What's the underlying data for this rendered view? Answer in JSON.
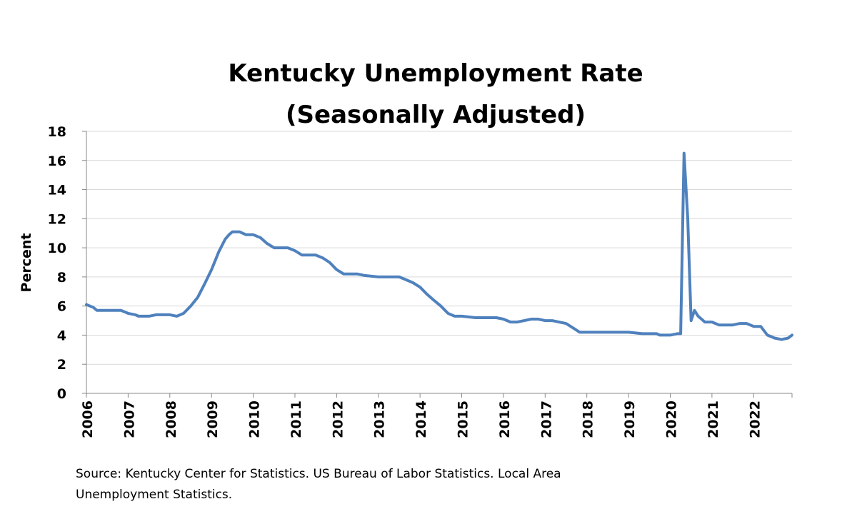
{
  "chart_data": {
    "type": "line",
    "title": "Kentucky Unemployment Rate",
    "subtitle": "(Seasonally Adjusted)",
    "ylabel": "Percent",
    "xlabel": "",
    "ylim": [
      0,
      18
    ],
    "xlim": [
      2006,
      2022.92
    ],
    "y_ticks": [
      0,
      2,
      4,
      6,
      8,
      10,
      12,
      14,
      16,
      18
    ],
    "x_tick_labels": [
      "2006",
      "2007",
      "2008",
      "2009",
      "2010",
      "2011",
      "2012",
      "2013",
      "2014",
      "2015",
      "2016",
      "2017",
      "2018",
      "2019",
      "2020",
      "2021",
      "2022"
    ],
    "grid": true,
    "legend": "none",
    "line_color": "#4f81bd",
    "grid_color": "#d9d9d9",
    "series": [
      {
        "x": [
          2006.0,
          2006.17,
          2006.25,
          2006.5,
          2006.83,
          2007.0,
          2007.17,
          2007.25,
          2007.5,
          2007.67,
          2008.0,
          2008.17,
          2008.33,
          2008.5,
          2008.67,
          2008.83,
          2009.0,
          2009.17,
          2009.33,
          2009.42,
          2009.5,
          2009.67,
          2009.83,
          2010.0,
          2010.17,
          2010.33,
          2010.5,
          2010.83,
          2011.0,
          2011.17,
          2011.5,
          2011.67,
          2011.83,
          2012.0,
          2012.17,
          2012.5,
          2012.67,
          2013.0,
          2013.5,
          2013.67,
          2013.83,
          2014.0,
          2014.17,
          2014.33,
          2014.5,
          2014.67,
          2014.83,
          2015.0,
          2015.33,
          2015.5,
          2015.83,
          2016.0,
          2016.17,
          2016.33,
          2016.5,
          2016.67,
          2016.83,
          2017.0,
          2017.17,
          2017.33,
          2017.5,
          2017.67,
          2017.83,
          2018.0,
          2018.5,
          2019.0,
          2019.33,
          2019.67,
          2019.75,
          2020.0,
          2020.17,
          2020.25,
          2020.33,
          2020.42,
          2020.5,
          2020.58,
          2020.67,
          2020.75,
          2020.83,
          2021.0,
          2021.17,
          2021.5,
          2021.67,
          2021.83,
          2022.0,
          2022.17,
          2022.33,
          2022.5,
          2022.67,
          2022.83,
          2022.92
        ],
        "y": [
          6.1,
          5.9,
          5.7,
          5.7,
          5.7,
          5.5,
          5.4,
          5.3,
          5.3,
          5.4,
          5.4,
          5.3,
          5.5,
          6.0,
          6.6,
          7.5,
          8.5,
          9.7,
          10.6,
          10.9,
          11.1,
          11.1,
          10.9,
          10.9,
          10.7,
          10.3,
          10.0,
          10.0,
          9.8,
          9.5,
          9.5,
          9.3,
          9.0,
          8.5,
          8.2,
          8.2,
          8.1,
          8.0,
          8.0,
          7.8,
          7.6,
          7.3,
          6.8,
          6.4,
          6.0,
          5.5,
          5.3,
          5.3,
          5.2,
          5.2,
          5.2,
          5.1,
          4.9,
          4.9,
          5.0,
          5.1,
          5.1,
          5.0,
          5.0,
          4.9,
          4.8,
          4.5,
          4.2,
          4.2,
          4.2,
          4.2,
          4.1,
          4.1,
          4.0,
          4.0,
          4.1,
          4.1,
          16.5,
          12.0,
          5.0,
          5.7,
          5.3,
          5.1,
          4.9,
          4.9,
          4.7,
          4.7,
          4.8,
          4.8,
          4.6,
          4.6,
          4.0,
          3.8,
          3.7,
          3.8,
          4.0
        ]
      }
    ]
  },
  "source_note_line1": "Source: Kentucky Center for Statistics. US Bureau of Labor Statistics. Local Area",
  "source_note_line2": "Unemployment Statistics."
}
